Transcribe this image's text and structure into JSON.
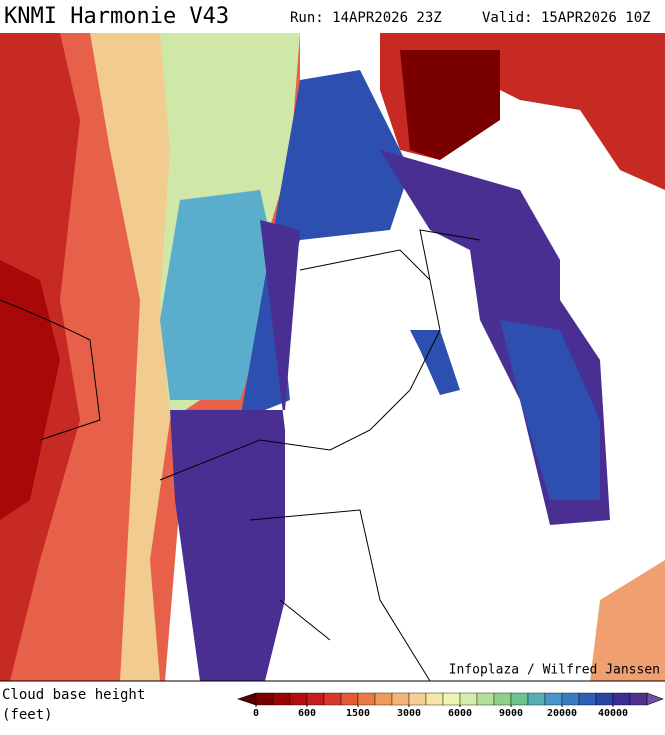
{
  "header": {
    "title": "KNMI Harmonie V43",
    "run": "Run: 14APR2026 23Z",
    "valid": "Valid: 15APR2026 10Z"
  },
  "map": {
    "credit": "Infoplaza / Wilfred Janssen"
  },
  "legend": {
    "label": "Cloud base height",
    "unit": "(feet)",
    "colors": [
      "#7a0000",
      "#990303",
      "#b30d0d",
      "#c91c1c",
      "#d83a2a",
      "#e45a36",
      "#ec7a46",
      "#f19a5e",
      "#f4b678",
      "#f6cf92",
      "#f6e6a8",
      "#eef4b2",
      "#d4edaa",
      "#b2e09a",
      "#8ed28a",
      "#6cc290",
      "#58aeb4",
      "#4896c8",
      "#3a7cc4",
      "#2e5eb6",
      "#2a44a2",
      "#3a2e94",
      "#52308e"
    ],
    "low_color": "#5a0000",
    "high_color": "#6e50a6",
    "ticks": [
      0,
      600,
      1500,
      3000,
      6000,
      9000,
      20000,
      40000
    ]
  }
}
